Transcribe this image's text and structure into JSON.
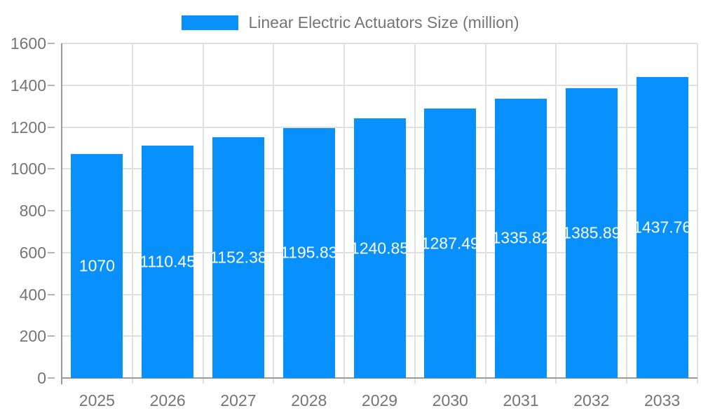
{
  "chart_data": {
    "type": "bar",
    "title": "",
    "legend": "Linear Electric Actuators Size (million)",
    "legend_position": "top",
    "categories": [
      "2025",
      "2026",
      "2027",
      "2028",
      "2029",
      "2030",
      "2031",
      "2032",
      "2033"
    ],
    "values": [
      1070,
      1110.45,
      1152.38,
      1195.83,
      1240.85,
      1287.49,
      1335.82,
      1385.89,
      1437.76
    ],
    "value_labels": [
      "1070",
      "1110.45",
      "1152.38",
      "1195.83",
      "1240.85",
      "1287.49",
      "1335.82",
      "1385.89",
      "1437.76"
    ],
    "xlabel": "",
    "ylabel": "",
    "ylim": [
      0,
      1600
    ],
    "yticks": [
      0,
      200,
      400,
      600,
      800,
      1000,
      1200,
      1400,
      1600
    ],
    "grid": true
  },
  "colors": {
    "bar": "#0890fc",
    "grid_line": "#e0e0e0",
    "axis_line": "#9a9a9a",
    "tick_y": "#b5b5b5",
    "tick_x": "#e0e0e0",
    "axis_text": "#757575",
    "legend_text": "#757575",
    "bar_label_text": "#ffffff",
    "background": "#ffffff"
  }
}
